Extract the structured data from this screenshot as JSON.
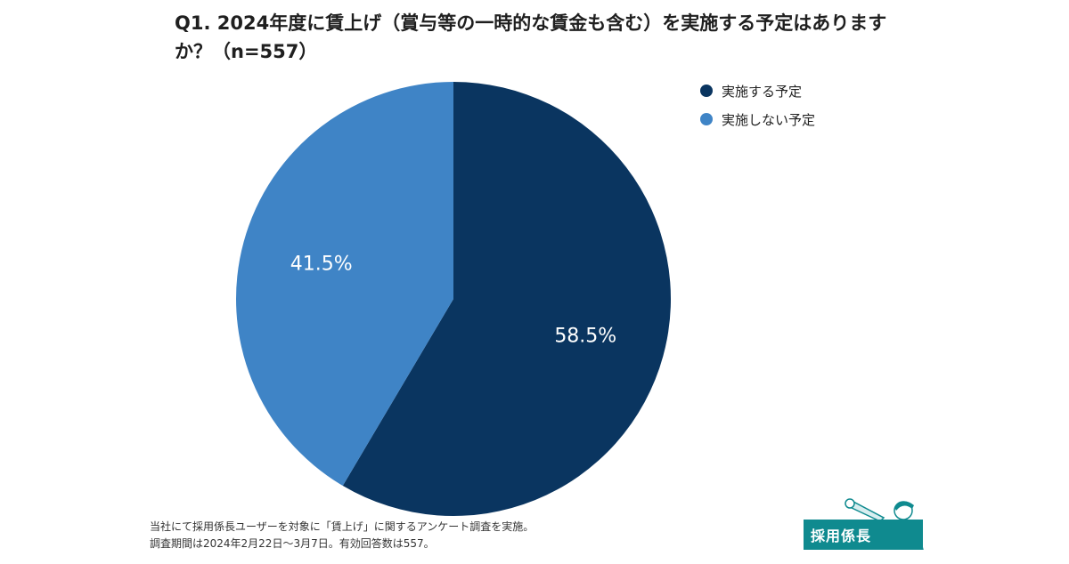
{
  "title": "Q1. 2024年度に賃上げ（賞与等の一時的な賃金も含む）を実施する予定はありますか？（n=557）",
  "chart_data": {
    "type": "pie",
    "categories": [
      "実施する予定",
      "実施しない予定"
    ],
    "values": [
      58.5,
      41.5
    ],
    "labels": [
      "58.5%",
      "41.5%"
    ],
    "colors": [
      "#0a3560",
      "#3f84c6"
    ],
    "start_angle_deg": 0,
    "direction": "clockwise",
    "legend_position": "top-right"
  },
  "footnote": {
    "line1": "当社にて採用係長ユーザーを対象に「賃上げ」に関するアンケート調査を実施。",
    "line2": "調査期間は2024年2月22日〜3月7日。有効回答数は557。"
  },
  "logo": {
    "text": "採用係長",
    "color": "#0f8a8f"
  }
}
